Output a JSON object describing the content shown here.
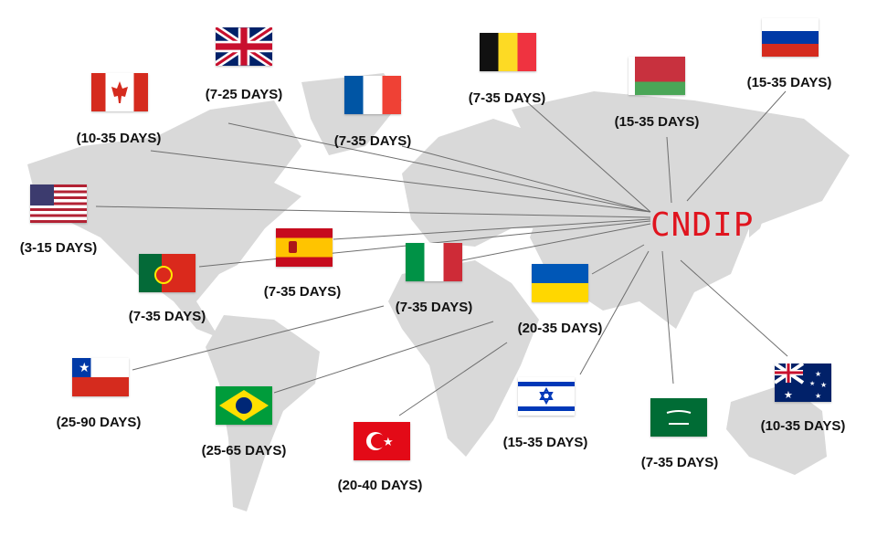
{
  "hub": {
    "label": "CNDIP",
    "color": "#e0141e"
  },
  "map_color": "#d9d9d9",
  "destinations": [
    {
      "country": "United Kingdom",
      "flag": "uk",
      "days": "(7-25 DAYS)"
    },
    {
      "country": "Canada",
      "flag": "canada",
      "days": "(10-35 DAYS)"
    },
    {
      "country": "France",
      "flag": "france",
      "days": "(7-35 DAYS)"
    },
    {
      "country": "Belgium",
      "flag": "belgium",
      "days": "(7-35 DAYS)"
    },
    {
      "country": "Belarus",
      "flag": "belarus",
      "days": "(15-35 DAYS)"
    },
    {
      "country": "Russia",
      "flag": "russia",
      "days": "(15-35 DAYS)"
    },
    {
      "country": "United States",
      "flag": "usa",
      "days": "(3-15 DAYS)"
    },
    {
      "country": "Spain",
      "flag": "spain",
      "days": "(7-35 DAYS)"
    },
    {
      "country": "Portugal",
      "flag": "portugal",
      "days": "(7-35 DAYS)"
    },
    {
      "country": "Italy",
      "flag": "italy",
      "days": "(7-35 DAYS)"
    },
    {
      "country": "Ukraine",
      "flag": "ukraine",
      "days": "(20-35 DAYS)"
    },
    {
      "country": "Chile",
      "flag": "chile",
      "days": "(25-90 DAYS)"
    },
    {
      "country": "Brazil",
      "flag": "brazil",
      "days": "(25-65 DAYS)"
    },
    {
      "country": "Turkey",
      "flag": "turkey",
      "days": "(20-40 DAYS)"
    },
    {
      "country": "Israel",
      "flag": "israel",
      "days": "(15-35 DAYS)"
    },
    {
      "country": "Saudi Arabia",
      "flag": "saudi",
      "days": "(7-35 DAYS)"
    },
    {
      "country": "Australia",
      "flag": "australia",
      "days": "(10-35 DAYS)"
    }
  ]
}
